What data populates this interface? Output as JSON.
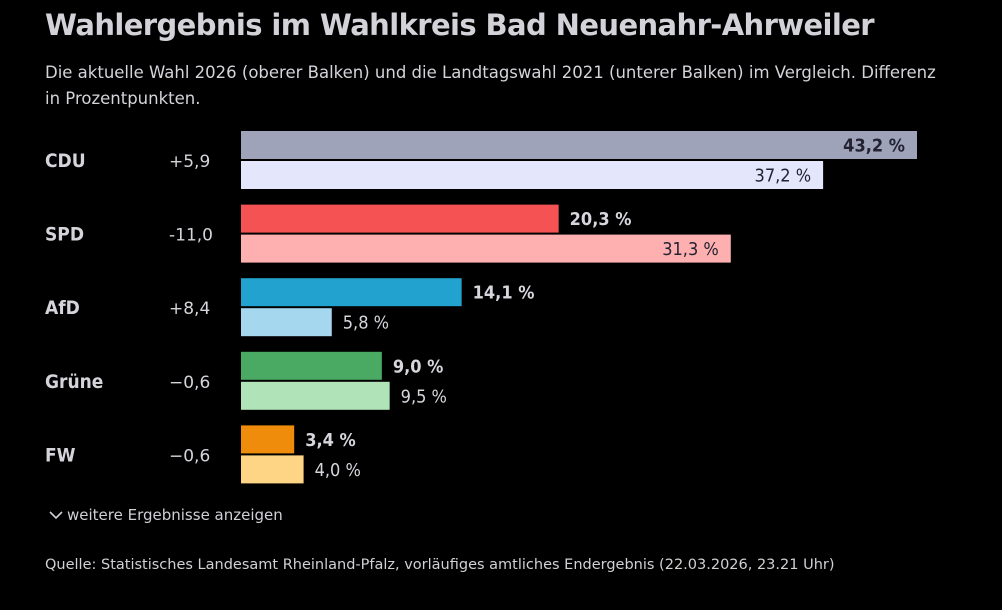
{
  "header": {
    "title": "Wahlergebnis im Wahlkreis Bad Neuenahr-Ahrweiler",
    "subtitle": "Die aktuelle Wahl 2026 (oberer Balken) und die Landtagswahl 2021 (unterer Balken) im Vergleich. Differenz in Prozentpunkten."
  },
  "chart_data": {
    "type": "bar",
    "orientation": "horizontal",
    "categories": [
      "CDU",
      "SPD",
      "AfD",
      "Grüne",
      "FW"
    ],
    "differences": [
      "+5,9",
      "-11,0",
      "+8,4",
      "−0,6",
      "−0,6"
    ],
    "series": [
      {
        "values": [
          43.2,
          20.3,
          14.1,
          9.0,
          3.4
        ],
        "labels": [
          "43,2 %",
          "20,3 %",
          "14,1 %",
          "9,0 %",
          "3,4 %"
        ],
        "colors": [
          "#9fa3ba",
          "#f55353",
          "#22a2cf",
          "#4aaa64",
          "#f08c0c"
        ]
      },
      {
        "values": [
          37.2,
          31.3,
          5.8,
          9.5,
          4.0
        ],
        "labels": [
          "37,2 %",
          "31,3 %",
          "5,8 %",
          "9,5 %",
          "4,0 %"
        ],
        "colors": [
          "#e4e7fb",
          "#feb0b0",
          "#a5d8ee",
          "#b0e4b8",
          "#fed585"
        ]
      }
    ],
    "xlim": [
      0,
      43.2
    ]
  },
  "more": {
    "label": "weitere Ergebnisse anzeigen",
    "icon": "chevron-down-icon"
  },
  "source": "Quelle: Statistisches Landesamt Rheinland-Pfalz, vorläufiges amtliches Endergebnis (22.03.2026, 23.21 Uhr)"
}
